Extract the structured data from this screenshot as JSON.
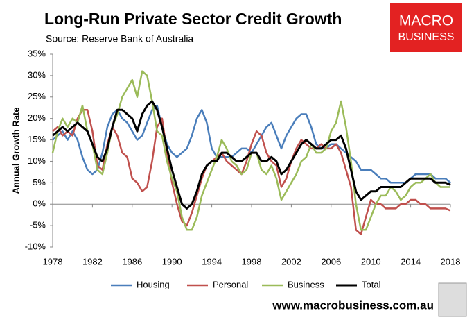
{
  "chart_data": {
    "type": "line",
    "title": "Long-Run Private Sector Credit Growth",
    "subtitle": "Source: Reserve Bank of Australia",
    "logo_text": [
      "MACRO",
      "BUSINESS"
    ],
    "website": "www.macrobusiness.com.au",
    "y_label": "Annual Growth Rate",
    "x": [
      1978,
      1978.5,
      1979,
      1979.5,
      1980,
      1980.5,
      1981,
      1981.5,
      1982,
      1982.5,
      1983,
      1983.5,
      1984,
      1984.5,
      1985,
      1985.5,
      1986,
      1986.5,
      1987,
      1987.5,
      1988,
      1988.5,
      1989,
      1989.5,
      1990,
      1990.5,
      1991,
      1991.5,
      1992,
      1992.5,
      1993,
      1993.5,
      1994,
      1994.5,
      1995,
      1995.5,
      1996,
      1996.5,
      1997,
      1997.5,
      1998,
      1998.5,
      1999,
      1999.5,
      2000,
      2000.5,
      2001,
      2001.5,
      2002,
      2002.5,
      2003,
      2003.5,
      2004,
      2004.5,
      2005,
      2005.5,
      2006,
      2006.5,
      2007,
      2007.5,
      2008,
      2008.5,
      2009,
      2009.5,
      2010,
      2010.5,
      2011,
      2011.5,
      2012,
      2012.5,
      2013,
      2013.5,
      2014,
      2014.5,
      2015,
      2015.5,
      2016,
      2016.5,
      2017,
      2017.5,
      2018
    ],
    "series": [
      {
        "name": "Housing",
        "color": "#4a7ebb",
        "values": [
          15,
          16,
          17,
          15,
          17,
          15,
          11,
          8,
          7,
          8,
          12,
          18,
          21,
          22,
          20,
          19,
          17,
          15,
          16,
          19,
          22,
          23,
          18,
          14,
          12,
          11,
          12,
          13,
          16,
          20,
          22,
          19,
          13,
          11,
          11,
          11,
          11,
          12,
          13,
          13,
          12,
          14,
          16,
          18,
          19,
          16,
          13,
          16,
          18,
          20,
          21,
          21,
          18,
          14,
          13,
          13,
          14,
          14,
          13,
          12,
          11,
          10,
          8,
          8,
          8,
          7,
          6,
          6,
          5,
          5,
          5,
          5,
          6,
          7,
          7,
          7,
          7,
          6,
          6,
          6,
          5
        ]
      },
      {
        "name": "Personal",
        "color": "#c0504d",
        "values": [
          17,
          18,
          16,
          17,
          16,
          20,
          22,
          22,
          17,
          9,
          8,
          14,
          18,
          16,
          12,
          11,
          6,
          5,
          3,
          4,
          10,
          18,
          20,
          12,
          5,
          0,
          -4,
          -5,
          -2,
          2,
          6,
          9,
          10,
          11,
          12,
          10,
          9,
          8,
          7,
          10,
          14,
          17,
          16,
          12,
          10,
          9,
          4,
          6,
          10,
          13,
          15,
          14,
          13,
          13,
          14,
          13,
          13,
          14,
          12,
          8,
          4,
          -6,
          -7,
          -3,
          1,
          0,
          0,
          -1,
          -1,
          -1,
          0,
          0,
          1,
          1,
          0,
          0,
          -1,
          -1,
          -1,
          -1,
          -1.5
        ]
      },
      {
        "name": "Business",
        "color": "#9bbb59",
        "values": [
          12,
          17,
          20,
          18,
          20,
          19,
          23,
          17,
          14,
          8,
          7,
          12,
          18,
          21,
          25,
          27,
          29,
          25,
          31,
          30,
          24,
          17,
          16,
          10,
          6,
          3,
          -3,
          -6,
          -6,
          -3,
          2,
          5,
          8,
          11,
          15,
          13,
          10,
          9,
          7,
          8,
          12,
          12,
          8,
          7,
          9,
          6,
          1,
          3,
          5,
          7,
          10,
          11,
          14,
          12,
          12,
          13,
          17,
          19,
          24,
          18,
          10,
          0,
          -6,
          -6,
          -3,
          0,
          2,
          2,
          4,
          3,
          1,
          2,
          4,
          5,
          5,
          6,
          7,
          5,
          4,
          4,
          4
        ]
      },
      {
        "name": "Total",
        "color": "#000000",
        "values": [
          16,
          17,
          18,
          17,
          18,
          19,
          18,
          17,
          14,
          11,
          10,
          13,
          18,
          22,
          22,
          21,
          20,
          17,
          21,
          23,
          24,
          22,
          18,
          13,
          8,
          4,
          0,
          -1,
          0,
          3,
          7,
          9,
          10,
          10,
          12,
          12,
          11,
          10,
          10,
          11,
          12,
          12,
          10,
          10,
          11,
          10,
          7,
          8,
          10,
          12,
          14,
          15,
          14,
          13,
          13,
          14,
          15,
          15,
          16,
          13,
          8,
          3,
          1,
          2,
          3,
          3,
          4,
          4,
          4,
          4,
          4,
          5,
          6,
          6,
          6,
          6,
          6,
          5,
          5,
          5,
          4.5
        ]
      }
    ],
    "xlim": [
      1978,
      2018
    ],
    "xticks": [
      1978,
      1982,
      1986,
      1990,
      1994,
      1998,
      2002,
      2006,
      2010,
      2014,
      2018
    ],
    "ylim": [
      -10,
      35
    ],
    "yticks": [
      {
        "value": -10,
        "label": "-10%"
      },
      {
        "value": -5,
        "label": "-5%"
      },
      {
        "value": 0,
        "label": "0%"
      },
      {
        "value": 5,
        "label": "5%"
      },
      {
        "value": 10,
        "label": "10%"
      },
      {
        "value": 15,
        "label": "15%"
      },
      {
        "value": 20,
        "label": "20%"
      },
      {
        "value": 25,
        "label": "25%"
      },
      {
        "value": 30,
        "label": "30%"
      },
      {
        "value": 35,
        "label": "35%"
      }
    ],
    "grid": false
  }
}
